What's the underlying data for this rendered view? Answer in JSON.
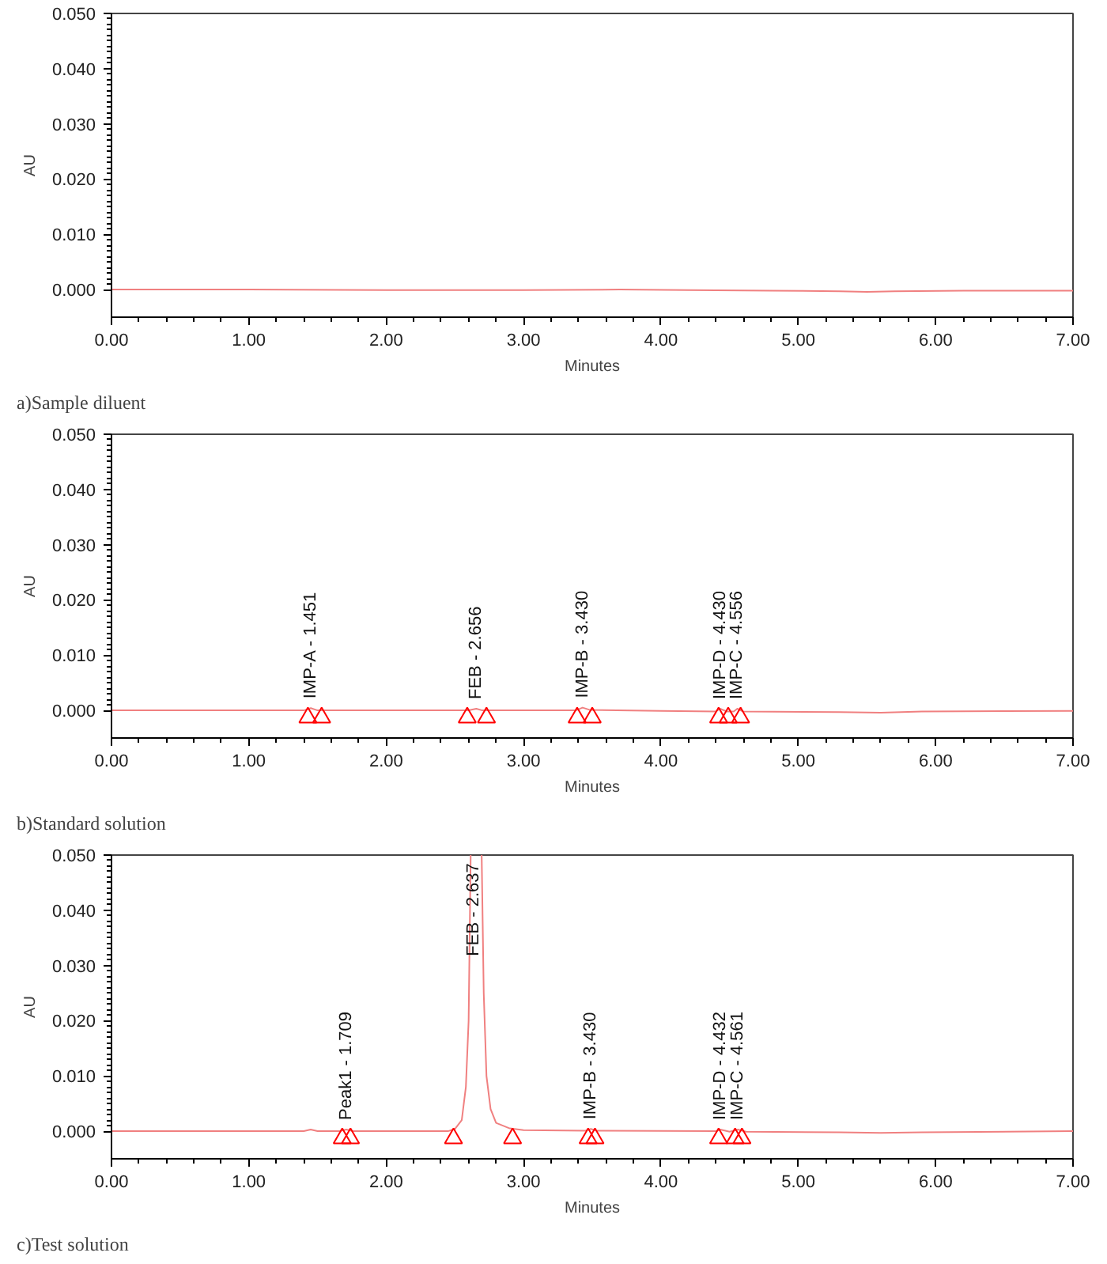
{
  "chart_data": [
    {
      "type": "line",
      "xlabel": "Minutes",
      "ylabel": "AU",
      "annotations": [
        "a)Sample diluent"
      ],
      "xlim": [
        0,
        7
      ],
      "ylim": [
        -0.005,
        0.05
      ],
      "xticks": [
        {
          "value": 0,
          "label": "0.00"
        },
        {
          "value": 1,
          "label": "1.00"
        },
        {
          "value": 2,
          "label": "2.00"
        },
        {
          "value": 3,
          "label": "3.00"
        },
        {
          "value": 4,
          "label": "4.00"
        },
        {
          "value": 5,
          "label": "5.00"
        },
        {
          "value": 6,
          "label": "6.00"
        },
        {
          "value": 7,
          "label": "7.00"
        }
      ],
      "yticks": [
        {
          "value": 0,
          "label": "0.000"
        },
        {
          "value": 0.01,
          "label": "0.010"
        },
        {
          "value": 0.02,
          "label": "0.020"
        },
        {
          "value": 0.03,
          "label": "0.030"
        },
        {
          "value": 0.04,
          "label": "0.040"
        },
        {
          "value": 0.05,
          "label": "0.050"
        }
      ],
      "grid": false,
      "series": [
        {
          "color": "#f08080",
          "marker": "none",
          "x": [
            0,
            1,
            2,
            3,
            3.7,
            4.2,
            4.8,
            5.3,
            5.5,
            5.7,
            6.2,
            7
          ],
          "values": [
            0,
            0,
            -0.0001,
            -0.0001,
            0,
            -0.0001,
            -0.0002,
            -0.0003,
            -0.0004,
            -0.0003,
            -0.0002,
            -0.0002
          ]
        }
      ]
    },
    {
      "type": "line",
      "xlabel": "Minutes",
      "ylabel": "AU",
      "annotations": [
        {
          "text": "IMP-A - 1.451",
          "x": 1.451,
          "y": 0.0004
        },
        {
          "text": "FEB - 2.656",
          "x": 2.656,
          "y": 0.0003
        },
        {
          "text": "IMP-B - 3.430",
          "x": 3.43,
          "y": 0.0005
        },
        {
          "text": "IMP-D - 4.430",
          "x": 4.43,
          "y": 0.0003
        },
        {
          "text": "IMP-C - 4.556",
          "x": 4.556,
          "y": 0.0003
        },
        "b)Standard solution"
      ],
      "xlim": [
        0,
        7
      ],
      "ylim": [
        -0.005,
        0.05
      ],
      "xticks": [
        {
          "value": 0,
          "label": "0.00"
        },
        {
          "value": 1,
          "label": "1.00"
        },
        {
          "value": 2,
          "label": "2.00"
        },
        {
          "value": 3,
          "label": "3.00"
        },
        {
          "value": 4,
          "label": "4.00"
        },
        {
          "value": 5,
          "label": "5.00"
        },
        {
          "value": 6,
          "label": "6.00"
        },
        {
          "value": 7,
          "label": "7.00"
        }
      ],
      "yticks": [
        {
          "value": 0,
          "label": "0.000"
        },
        {
          "value": 0.01,
          "label": "0.010"
        },
        {
          "value": 0.02,
          "label": "0.020"
        },
        {
          "value": 0.03,
          "label": "0.030"
        },
        {
          "value": 0.04,
          "label": "0.040"
        },
        {
          "value": 0.05,
          "label": "0.050"
        }
      ],
      "grid": false,
      "series": [
        {
          "color": "#f08080",
          "marker": "none",
          "x": [
            0,
            1,
            1.4,
            1.451,
            1.5,
            2.6,
            2.656,
            2.7,
            3.38,
            3.43,
            3.48,
            4.0,
            4.4,
            4.43,
            4.48,
            4.53,
            4.556,
            4.6,
            5.3,
            5.6,
            5.9,
            7
          ],
          "values": [
            0,
            0,
            0,
            0.0004,
            0,
            0,
            0.0003,
            0,
            0,
            0.0005,
            0.0001,
            -0.0001,
            -0.0002,
            0.0003,
            -0.0002,
            -0.0002,
            0.0003,
            -0.0002,
            -0.0003,
            -0.0004,
            -0.0002,
            -0.0001
          ]
        },
        {
          "type": "scatter",
          "color": "#ff0000",
          "marker": "triangle",
          "x": [
            1.43,
            1.53,
            2.59,
            2.73,
            3.39,
            3.5,
            4.42,
            4.49,
            4.58
          ],
          "values": [
            -0.0013,
            -0.0013,
            -0.0013,
            -0.0013,
            -0.0013,
            -0.0013,
            -0.0013,
            -0.0013,
            -0.0013
          ]
        }
      ]
    },
    {
      "type": "line",
      "xlabel": "Minutes",
      "ylabel": "AU",
      "annotations": [
        {
          "text": "Peak1 - 1.709",
          "x": 1.709,
          "y": 0.0003
        },
        {
          "text": "FEB - 2.637",
          "x": 2.637,
          "y": 0.03
        },
        {
          "text": "IMP-B - 3.430",
          "x": 3.49,
          "y": 0.0004
        },
        {
          "text": "IMP-D - 4.432",
          "x": 4.432,
          "y": 0.0003
        },
        {
          "text": "IMP-C - 4.561",
          "x": 4.561,
          "y": 0.0003
        },
        "c)Test solution"
      ],
      "xlim": [
        0,
        7
      ],
      "ylim": [
        -0.005,
        0.05
      ],
      "xticks": [
        {
          "value": 0,
          "label": "0.00"
        },
        {
          "value": 1,
          "label": "1.00"
        },
        {
          "value": 2,
          "label": "2.00"
        },
        {
          "value": 3,
          "label": "3.00"
        },
        {
          "value": 4,
          "label": "4.00"
        },
        {
          "value": 5,
          "label": "5.00"
        },
        {
          "value": 6,
          "label": "6.00"
        },
        {
          "value": 7,
          "label": "7.00"
        }
      ],
      "yticks": [
        {
          "value": 0,
          "label": "0.000"
        },
        {
          "value": 0.01,
          "label": "0.010"
        },
        {
          "value": 0.02,
          "label": "0.020"
        },
        {
          "value": 0.03,
          "label": "0.030"
        },
        {
          "value": 0.04,
          "label": "0.040"
        },
        {
          "value": 0.05,
          "label": "0.050"
        }
      ],
      "grid": false,
      "series": [
        {
          "color": "#f08080",
          "marker": "none",
          "x": [
            0,
            1.0,
            1.4,
            1.45,
            1.5,
            1.66,
            1.709,
            1.76,
            2.45,
            2.5,
            2.55,
            2.58,
            2.6,
            2.615,
            null,
            2.695,
            2.71,
            2.73,
            2.76,
            2.8,
            2.9,
            3.0,
            3.45,
            3.49,
            3.53,
            4.4,
            4.432,
            4.5,
            4.561,
            4.62,
            5.3,
            5.6,
            5.9,
            7
          ],
          "values": [
            0,
            0,
            0,
            0.0003,
            0,
            0,
            0.0003,
            0,
            0,
            0.0004,
            0.002,
            0.008,
            0.02,
            0.05,
            null,
            0.05,
            0.025,
            0.01,
            0.004,
            0.0015,
            0.0005,
            0.0002,
            0.0001,
            0.0004,
            0.0001,
            0,
            0.0003,
            -0.0001,
            0.0003,
            -0.0001,
            -0.0002,
            -0.0003,
            -0.0002,
            0
          ]
        },
        {
          "type": "scatter",
          "color": "#ff0000",
          "marker": "triangle",
          "x": [
            1.68,
            1.74,
            2.49,
            2.92,
            3.47,
            3.52,
            4.42,
            4.54,
            4.59
          ],
          "values": [
            -0.0013,
            -0.0013,
            -0.0013,
            -0.0013,
            -0.0013,
            -0.0013,
            -0.0013,
            -0.0013,
            -0.0013
          ]
        }
      ]
    }
  ]
}
